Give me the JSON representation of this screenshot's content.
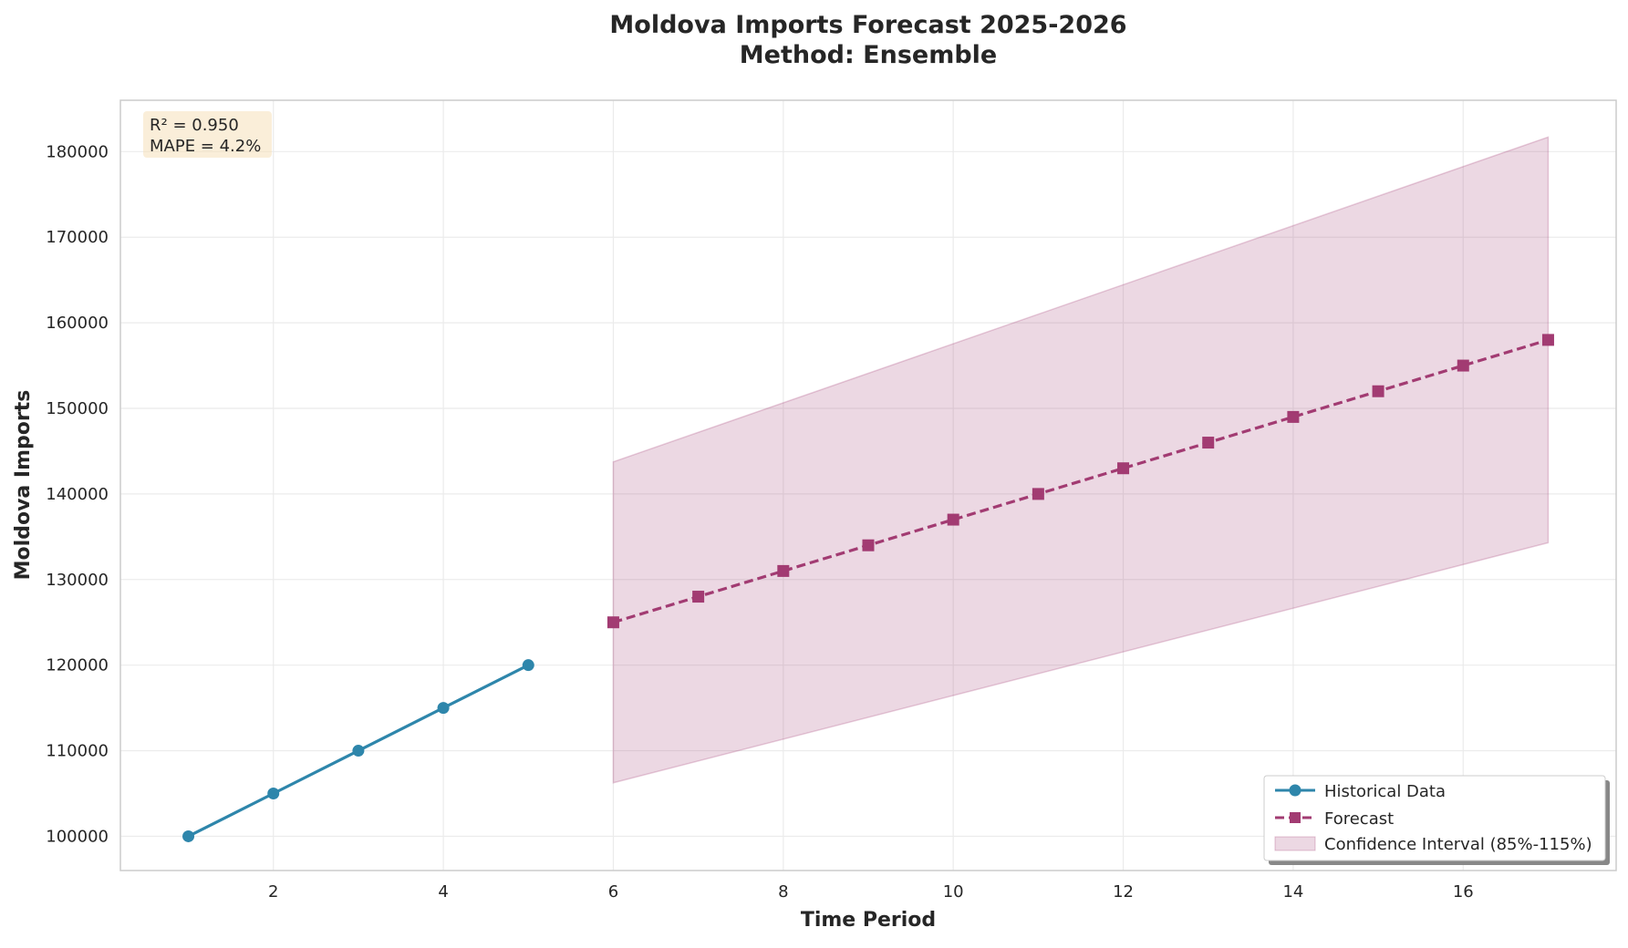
{
  "chart_data": {
    "type": "line",
    "title": "Moldova Imports Forecast 2025-2026",
    "subtitle": "Method: Ensemble",
    "xlabel": "Time Period",
    "ylabel": "Moldova Imports",
    "xlim": [
      0.2,
      17.8
    ],
    "ylim": [
      96000,
      186000
    ],
    "x_ticks": [
      2,
      4,
      6,
      8,
      10,
      12,
      14,
      16
    ],
    "y_ticks": [
      100000,
      110000,
      120000,
      130000,
      140000,
      150000,
      160000,
      170000,
      180000
    ],
    "grid": true,
    "legend_position": "lower-right",
    "metrics": [
      "R² = 0.950",
      "MAPE = 4.2%"
    ],
    "series": [
      {
        "name": "Historical Data",
        "style": "solid",
        "marker": "circle",
        "color": "#2e86ab",
        "x": [
          1,
          2,
          3,
          4,
          5
        ],
        "y": [
          100000,
          105000,
          110000,
          115000,
          120000
        ]
      },
      {
        "name": "Forecast",
        "style": "dashed",
        "marker": "square",
        "color": "#a23b72",
        "x": [
          6,
          7,
          8,
          9,
          10,
          11,
          12,
          13,
          14,
          15,
          16,
          17
        ],
        "y": [
          125000,
          128000,
          131000,
          134000,
          137000,
          140000,
          143000,
          146000,
          149000,
          152000,
          155000,
          158000
        ]
      }
    ],
    "band": {
      "name": "Confidence Interval (85%-115%)",
      "color": "#a23b72",
      "opacity": 0.2,
      "x": [
        6,
        17
      ],
      "lower": [
        106250,
        134300
      ],
      "upper": [
        143750,
        181700
      ]
    }
  }
}
